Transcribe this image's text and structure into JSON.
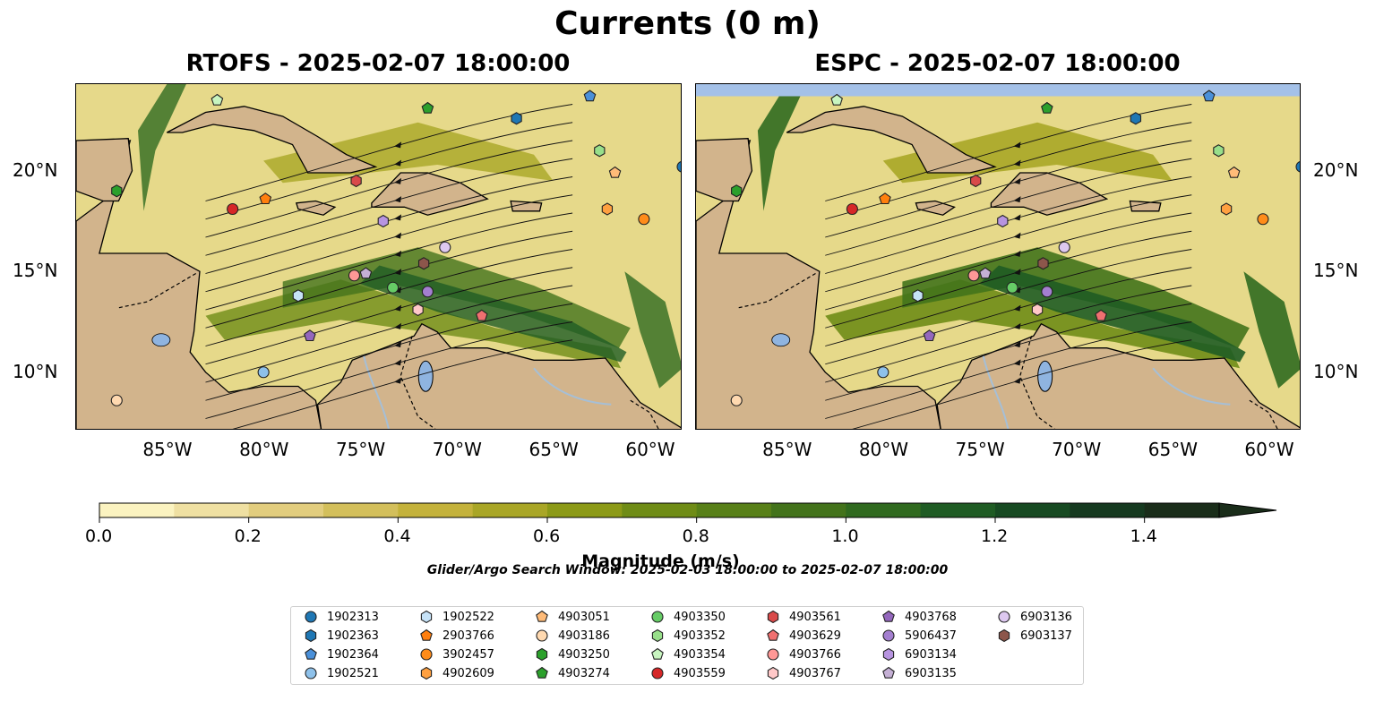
{
  "figure": {
    "suptitle": "Currents (0 m)",
    "panels": [
      {
        "title": "RTOFS - 2025-02-07 18:00:00"
      },
      {
        "title": "ESPC - 2025-02-07 18:00:00"
      }
    ],
    "lon_labels": [
      "85°W",
      "80°W",
      "75°W",
      "70°W",
      "65°W",
      "60°W"
    ],
    "lat_labels": [
      "20°N",
      "15°N",
      "10°N"
    ],
    "extent": {
      "lon": [
        -89.7,
        -58.3
      ],
      "lat": [
        7.1,
        24.3
      ]
    }
  },
  "colorbar": {
    "label": "Magnitude (m/s)",
    "ticks": [
      "0.0",
      "0.2",
      "0.4",
      "0.6",
      "0.8",
      "1.0",
      "1.2",
      "1.4"
    ],
    "range": [
      0,
      1.5
    ],
    "colors": [
      "#fbf3c0",
      "#efe0a2",
      "#e2cd7e",
      "#d3bf5b",
      "#c4b23b",
      "#a9a626",
      "#8c9a17",
      "#6f8c16",
      "#588018",
      "#43731b",
      "#306a1f",
      "#1f5c24",
      "#174a22",
      "#163a20",
      "#1a2d1a"
    ]
  },
  "search_window": "Glider/Argo Search Window: 2025-02-03 18:00:00 to 2025-02-07 18:00:00",
  "map_colors": {
    "land": "#d2b48c",
    "lake": "#8fb4e0",
    "river": "#a6bfd6",
    "nodata": "#a4c1e8"
  },
  "legend": {
    "columns": [
      [
        {
          "id": "1902313",
          "marker": "circle",
          "color": "#1f77b4"
        },
        {
          "id": "1902363",
          "marker": "hexagon",
          "color": "#1f77b4"
        },
        {
          "id": "1902364",
          "marker": "pentagon",
          "color": "#4a90d9"
        },
        {
          "id": "1902521",
          "marker": "circle",
          "color": "#8ec1ea"
        }
      ],
      [
        {
          "id": "1902522",
          "marker": "hexagon",
          "color": "#c6e2f7"
        },
        {
          "id": "2903766",
          "marker": "pentagon",
          "color": "#ff7f0e"
        },
        {
          "id": "3902457",
          "marker": "circle",
          "color": "#ff8c1a"
        },
        {
          "id": "4902609",
          "marker": "hexagon",
          "color": "#ffa040"
        }
      ],
      [
        {
          "id": "4903051",
          "marker": "pentagon",
          "color": "#ffbb78"
        },
        {
          "id": "4903186",
          "marker": "circle",
          "color": "#ffd9b0"
        },
        {
          "id": "4903250",
          "marker": "hexagon",
          "color": "#2ca02c"
        },
        {
          "id": "4903274",
          "marker": "pentagon",
          "color": "#2ca02c"
        }
      ],
      [
        {
          "id": "4903350",
          "marker": "circle",
          "color": "#66cc66"
        },
        {
          "id": "4903352",
          "marker": "hexagon",
          "color": "#98df8a"
        },
        {
          "id": "4903354",
          "marker": "pentagon",
          "color": "#c8f5c0"
        },
        {
          "id": "4903559",
          "marker": "circle",
          "color": "#d62728"
        }
      ],
      [
        {
          "id": "4903561",
          "marker": "hexagon",
          "color": "#d94a4a"
        },
        {
          "id": "4903629",
          "marker": "pentagon",
          "color": "#f07070"
        },
        {
          "id": "4903766",
          "marker": "circle",
          "color": "#ff9896"
        },
        {
          "id": "4903767",
          "marker": "hexagon",
          "color": "#ffc8c8"
        }
      ],
      [
        {
          "id": "4903768",
          "marker": "pentagon",
          "color": "#9467bd"
        },
        {
          "id": "5906437",
          "marker": "circle",
          "color": "#a47fd0"
        },
        {
          "id": "6903134",
          "marker": "hexagon",
          "color": "#b794e0"
        },
        {
          "id": "6903135",
          "marker": "pentagon",
          "color": "#c5b0d5"
        }
      ],
      [
        {
          "id": "6903136",
          "marker": "circle",
          "color": "#ddc8f0"
        },
        {
          "id": "6903137",
          "marker": "hexagon",
          "color": "#8c564b"
        }
      ]
    ]
  },
  "floats": [
    {
      "id": "1902313",
      "lon": -58.3,
      "lat": 20.2
    },
    {
      "id": "1902363",
      "lon": -66.9,
      "lat": 22.6
    },
    {
      "id": "1902364",
      "lon": -63.1,
      "lat": 23.7
    },
    {
      "id": "1902521",
      "lon": -80.0,
      "lat": 10.0
    },
    {
      "id": "1902522",
      "lon": -78.2,
      "lat": 13.8
    },
    {
      "id": "2903766",
      "lon": -79.9,
      "lat": 18.6
    },
    {
      "id": "3902457",
      "lon": -60.3,
      "lat": 17.6
    },
    {
      "id": "4902609",
      "lon": -62.2,
      "lat": 18.1
    },
    {
      "id": "4903051",
      "lon": -61.8,
      "lat": 19.9
    },
    {
      "id": "4903186",
      "lon": -87.6,
      "lat": 8.6
    },
    {
      "id": "4903250",
      "lon": -87.6,
      "lat": 19.0
    },
    {
      "id": "4903274",
      "lon": -71.5,
      "lat": 23.1
    },
    {
      "id": "4903350",
      "lon": -73.3,
      "lat": 14.2
    },
    {
      "id": "4903352",
      "lon": -62.6,
      "lat": 21.0
    },
    {
      "id": "4903354",
      "lon": -82.4,
      "lat": 23.5
    },
    {
      "id": "4903559",
      "lon": -81.6,
      "lat": 18.1
    },
    {
      "id": "4903561",
      "lon": -75.2,
      "lat": 19.5
    },
    {
      "id": "4903629",
      "lon": -68.7,
      "lat": 12.8
    },
    {
      "id": "4903766",
      "lon": -75.3,
      "lat": 14.8
    },
    {
      "id": "4903767",
      "lon": -72.0,
      "lat": 13.1
    },
    {
      "id": "4903768",
      "lon": -77.6,
      "lat": 11.8
    },
    {
      "id": "5906437",
      "lon": -71.5,
      "lat": 14.0
    },
    {
      "id": "6903134",
      "lon": -73.8,
      "lat": 17.5
    },
    {
      "id": "6903135",
      "lon": -74.7,
      "lat": 14.9
    },
    {
      "id": "6903136",
      "lon": -70.6,
      "lat": 16.2
    },
    {
      "id": "6903137",
      "lon": -71.7,
      "lat": 15.4
    }
  ]
}
